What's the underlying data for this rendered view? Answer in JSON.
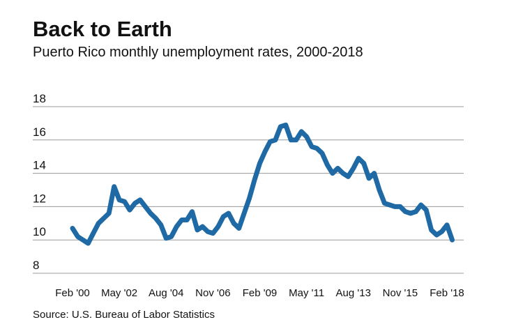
{
  "chart_data": {
    "type": "line",
    "title": "Back to Earth",
    "subtitle": "Puerto Rico monthly unemployment rates, 2000-2018",
    "source": "Source: U.S. Bureau of Labor Statistics",
    "categories": [
      "Feb '00",
      null,
      null,
      null,
      null,
      null,
      null,
      null,
      null,
      "May '02",
      null,
      null,
      null,
      null,
      null,
      null,
      null,
      null,
      "Aug '04",
      null,
      null,
      null,
      null,
      null,
      null,
      null,
      null,
      "Nov '06",
      null,
      null,
      null,
      null,
      null,
      null,
      null,
      null,
      "Feb '09",
      null,
      null,
      null,
      null,
      null,
      null,
      null,
      null,
      "May '11",
      null,
      null,
      null,
      null,
      null,
      null,
      null,
      null,
      "Aug '13",
      null,
      null,
      null,
      null,
      null,
      null,
      null,
      null,
      "Nov '15",
      null,
      null,
      null,
      null,
      null,
      null,
      null,
      null,
      "Feb '18",
      null
    ],
    "series": [
      {
        "name": "Unemployment rate",
        "color": "#1f6aa5",
        "values": [
          10.7,
          10.2,
          10.0,
          9.8,
          10.4,
          11.0,
          11.3,
          11.6,
          13.2,
          12.4,
          12.3,
          11.8,
          12.2,
          12.4,
          12.0,
          11.6,
          11.3,
          10.9,
          10.1,
          10.2,
          10.8,
          11.2,
          11.2,
          11.7,
          10.6,
          10.8,
          10.5,
          10.4,
          10.8,
          11.4,
          11.6,
          11.0,
          10.7,
          11.6,
          12.5,
          13.6,
          14.6,
          15.3,
          15.9,
          16.0,
          16.8,
          16.9,
          16.0,
          16.0,
          16.5,
          16.2,
          15.6,
          15.5,
          15.2,
          14.5,
          14.0,
          14.3,
          14.0,
          13.8,
          14.3,
          14.9,
          14.6,
          13.7,
          14.0,
          13.0,
          12.2,
          12.1,
          12.0,
          12.0,
          11.7,
          11.6,
          11.7,
          12.1,
          11.8,
          10.6,
          10.3,
          10.5,
          10.9,
          10.0
        ]
      }
    ],
    "ylim": [
      8,
      18
    ],
    "yticks": [
      8,
      10,
      12,
      14,
      16,
      18
    ],
    "grid": true
  }
}
